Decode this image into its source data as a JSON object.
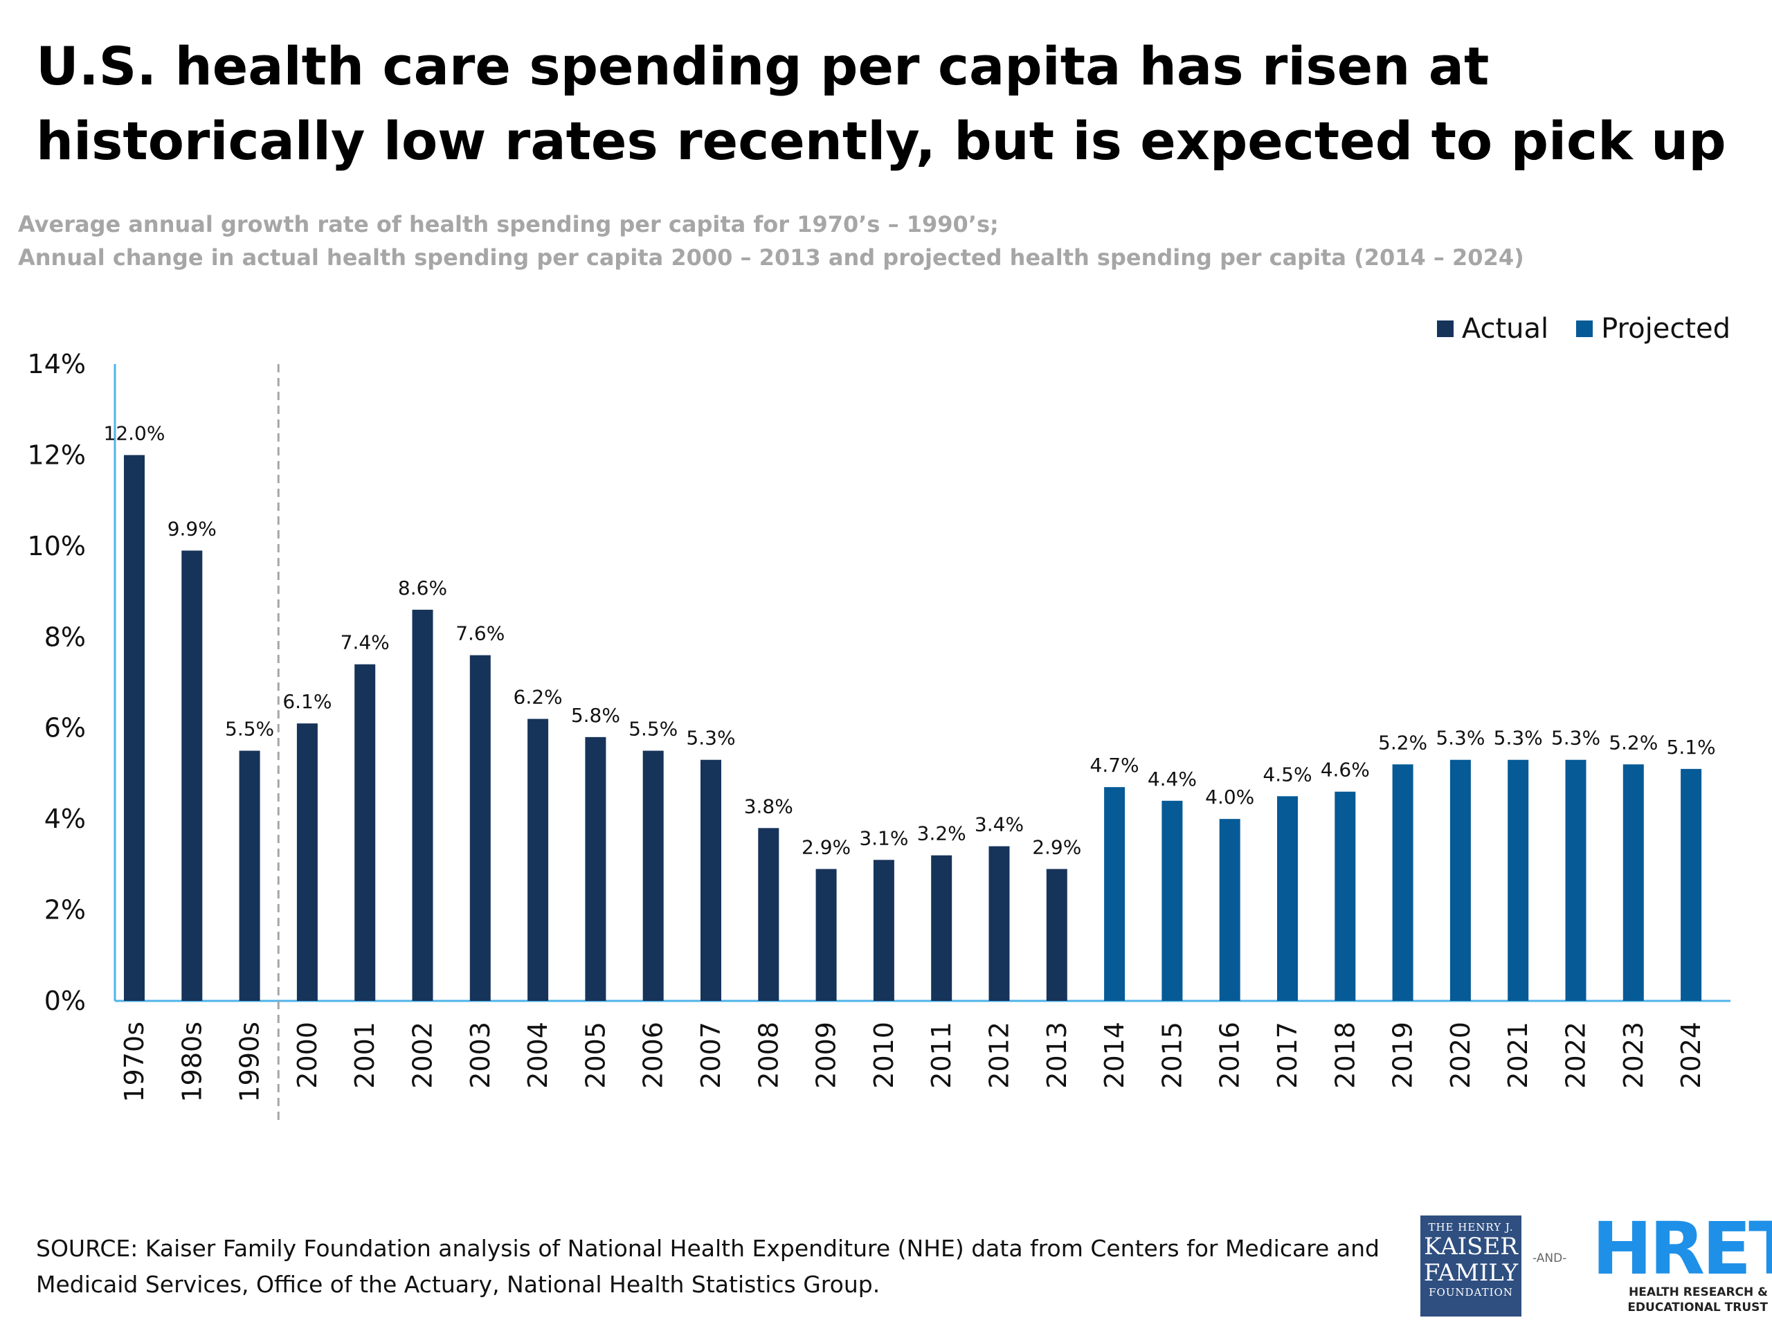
{
  "title": "U.S. health care spending per capita has risen at historically low rates recently, but is expected to pick up",
  "subtitle_line1": "Average annual growth rate of health spending per capita for 1970’s – 1990’s;",
  "subtitle_line2": "Annual change in actual health spending per capita 2000 – 2013 and projected health spending per capita (2014 – 2024)",
  "legend": {
    "actual": "Actual",
    "projected": "Projected"
  },
  "colors": {
    "actual": "#16335a",
    "projected": "#065a96",
    "axis": "#4fb3e8",
    "divider": "#a6a6a6"
  },
  "source": "SOURCE: Kaiser Family Foundation analysis of National Health Expenditure (NHE) data from Centers for Medicare and Medicaid Services, Office of the Actuary, National Health Statistics Group.",
  "logos": {
    "kff_line1": "THE HENRY J.",
    "kff_line2": "KAISER",
    "kff_line3": "FAMILY",
    "kff_line4": "FOUNDATION",
    "and": "-AND-",
    "hret_mark": "HRET",
    "hret_tag1": "HEALTH RESEARCH &",
    "hret_tag2": "EDUCATIONAL TRUST"
  },
  "chart_data": {
    "type": "bar",
    "categories": [
      "1970s",
      "1980s",
      "1990s",
      "2000",
      "2001",
      "2002",
      "2003",
      "2004",
      "2005",
      "2006",
      "2007",
      "2008",
      "2009",
      "2010",
      "2011",
      "2012",
      "2013",
      "2014",
      "2015",
      "2016",
      "2017",
      "2018",
      "2019",
      "2020",
      "2021",
      "2022",
      "2023",
      "2024"
    ],
    "values": [
      12.0,
      9.9,
      5.5,
      6.1,
      7.4,
      8.6,
      7.6,
      6.2,
      5.8,
      5.5,
      5.3,
      3.8,
      2.9,
      3.1,
      3.2,
      3.4,
      2.9,
      4.7,
      4.4,
      4.0,
      4.5,
      4.6,
      5.2,
      5.3,
      5.3,
      5.3,
      5.2,
      5.1
    ],
    "labels": [
      "12.0%",
      "9.9%",
      "5.5%",
      "6.1%",
      "7.4%",
      "8.6%",
      "7.6%",
      "6.2%",
      "5.8%",
      "5.5%",
      "5.3%",
      "3.8%",
      "2.9%",
      "3.1%",
      "3.2%",
      "3.4%",
      "2.9%",
      "4.7%",
      "4.4%",
      "4.0%",
      "4.5%",
      "4.6%",
      "5.2%",
      "5.3%",
      "5.3%",
      "5.3%",
      "5.2%",
      "5.1%"
    ],
    "groups": [
      "Actual",
      "Actual",
      "Actual",
      "Actual",
      "Actual",
      "Actual",
      "Actual",
      "Actual",
      "Actual",
      "Actual",
      "Actual",
      "Actual",
      "Actual",
      "Actual",
      "Actual",
      "Actual",
      "Actual",
      "Projected",
      "Projected",
      "Projected",
      "Projected",
      "Projected",
      "Projected",
      "Projected",
      "Projected",
      "Projected",
      "Projected",
      "Projected"
    ],
    "yticks": [
      "0%",
      "2%",
      "4%",
      "6%",
      "8%",
      "10%",
      "12%",
      "14%"
    ],
    "ylim": [
      0,
      14
    ],
    "legend_position": "top-right",
    "grid": false
  }
}
